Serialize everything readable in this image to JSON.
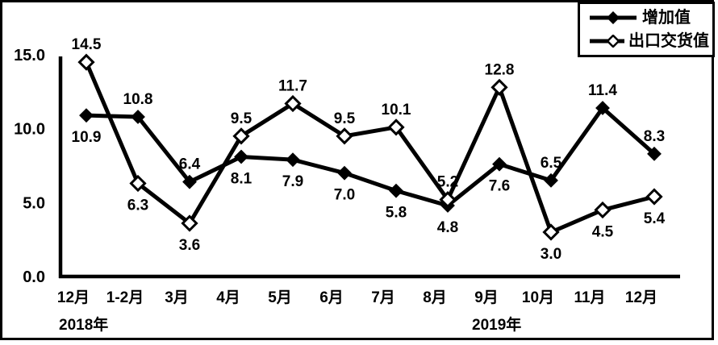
{
  "chart_data": {
    "type": "line",
    "title": "",
    "xlabel": "",
    "ylabel": "",
    "ylim": [
      0,
      15
    ],
    "grid": false,
    "legend_position": "top-right",
    "yticks": [
      {
        "value": 0,
        "label": "0.0"
      },
      {
        "value": 5,
        "label": "5.0"
      },
      {
        "value": 10,
        "label": "10.0"
      },
      {
        "value": 15,
        "label": "15.0"
      }
    ],
    "categories": [
      "12月",
      "1-2月",
      "3月",
      "4月",
      "5月",
      "6月",
      "7月",
      "8月",
      "9月",
      "10月",
      "11月",
      "12月"
    ],
    "year_labels": [
      {
        "text": "2018年",
        "category_index": 0
      },
      {
        "text": "2019年",
        "category_index": 8
      }
    ],
    "series": [
      {
        "name": "增加值",
        "marker": "filled-diamond",
        "color": "#000000",
        "values": [
          10.9,
          10.8,
          6.4,
          8.1,
          7.9,
          7.0,
          5.8,
          4.8,
          7.6,
          6.5,
          11.4,
          8.3
        ],
        "label_positions": [
          "below",
          "above",
          "above",
          "below",
          "below",
          "below",
          "below",
          "below",
          "below",
          "above",
          "above",
          "above"
        ]
      },
      {
        "name": "出口交货值",
        "marker": "hollow-diamond",
        "color": "#000000",
        "values": [
          14.5,
          6.3,
          3.6,
          9.5,
          11.7,
          9.5,
          10.1,
          5.2,
          12.8,
          3.0,
          4.5,
          5.4
        ],
        "label_positions": [
          "above",
          "below",
          "below",
          "above",
          "above",
          "above",
          "above",
          "above",
          "above",
          "below",
          "below",
          "below"
        ]
      }
    ]
  },
  "colors": {
    "line": "#000000",
    "background": "#ffffff",
    "border": "#000000"
  }
}
